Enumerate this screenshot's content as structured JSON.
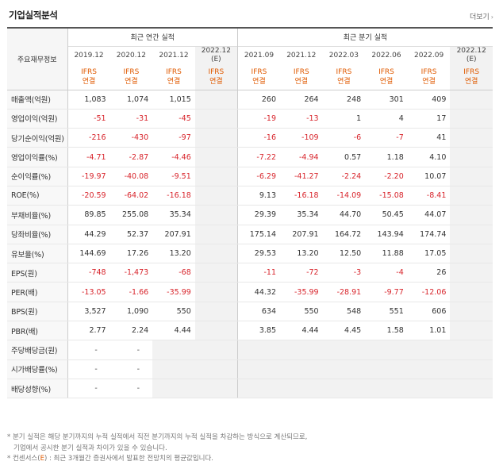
{
  "header": {
    "title": "기업실적분석",
    "more_label": "더보기",
    "more_arrow": "›"
  },
  "table": {
    "label_head": "주요재무정보",
    "annual_group": "최근 연간 실적",
    "quarterly_group": "최근 분기 실적",
    "annual_periods": [
      "2019.12",
      "2020.12",
      "2021.12",
      "2022.12"
    ],
    "annual_estimate_suffix": "(E)",
    "quarter_periods": [
      "2021.09",
      "2021.12",
      "2022.03",
      "2022.06",
      "2022.09",
      "2022.12"
    ],
    "quarter_estimate_suffix": "(E)",
    "ifrs_top": "IFRS",
    "ifrs_bottom": "연결",
    "rows": [
      {
        "label": "매출액(억원)",
        "values": [
          "1,083",
          "1,074",
          "1,015",
          "",
          "260",
          "264",
          "248",
          "301",
          "409",
          ""
        ]
      },
      {
        "label": "영업이익(억원)",
        "values": [
          "-51",
          "-31",
          "-45",
          "",
          "-19",
          "-13",
          "1",
          "4",
          "17",
          ""
        ]
      },
      {
        "label": "당기순이익(억원)",
        "values": [
          "-216",
          "-430",
          "-97",
          "",
          "-16",
          "-109",
          "-6",
          "-7",
          "41",
          ""
        ]
      },
      {
        "label": "영업이익률(%)",
        "values": [
          "-4.71",
          "-2.87",
          "-4.46",
          "",
          "-7.22",
          "-4.94",
          "0.57",
          "1.18",
          "4.10",
          ""
        ]
      },
      {
        "label": "순이익률(%)",
        "values": [
          "-19.97",
          "-40.08",
          "-9.51",
          "",
          "-6.29",
          "-41.27",
          "-2.24",
          "-2.20",
          "10.07",
          ""
        ]
      },
      {
        "label": "ROE(%)",
        "values": [
          "-20.59",
          "-64.02",
          "-16.18",
          "",
          "9.13",
          "-16.18",
          "-14.09",
          "-15.08",
          "-8.41",
          ""
        ]
      },
      {
        "label": "부채비율(%)",
        "values": [
          "89.85",
          "255.08",
          "35.34",
          "",
          "29.39",
          "35.34",
          "44.70",
          "50.45",
          "44.07",
          ""
        ]
      },
      {
        "label": "당좌비율(%)",
        "values": [
          "44.29",
          "52.37",
          "207.91",
          "",
          "175.14",
          "207.91",
          "164.72",
          "143.94",
          "174.74",
          ""
        ]
      },
      {
        "label": "유보율(%)",
        "values": [
          "144.69",
          "17.26",
          "13.20",
          "",
          "29.53",
          "13.20",
          "12.50",
          "11.88",
          "17.05",
          ""
        ]
      },
      {
        "label": "EPS(원)",
        "values": [
          "-748",
          "-1,473",
          "-68",
          "",
          "-11",
          "-72",
          "-3",
          "-4",
          "26",
          ""
        ]
      },
      {
        "label": "PER(배)",
        "values": [
          "-13.05",
          "-1.66",
          "-35.99",
          "",
          "44.32",
          "-35.99",
          "-28.91",
          "-9.77",
          "-12.06",
          ""
        ]
      },
      {
        "label": "BPS(원)",
        "values": [
          "3,527",
          "1,090",
          "550",
          "",
          "634",
          "550",
          "548",
          "551",
          "606",
          ""
        ]
      },
      {
        "label": "PBR(배)",
        "values": [
          "2.77",
          "2.24",
          "4.44",
          "",
          "3.85",
          "4.44",
          "4.45",
          "1.58",
          "1.01",
          ""
        ]
      },
      {
        "label": "주당배당금(원)",
        "values": [
          "-",
          "-",
          "",
          "",
          "",
          "",
          "",
          "",
          "",
          ""
        ]
      },
      {
        "label": "시가배당률(%)",
        "values": [
          "-",
          "-",
          "",
          "",
          "",
          "",
          "",
          "",
          "",
          ""
        ]
      },
      {
        "label": "배당성향(%)",
        "values": [
          "-",
          "-",
          "",
          "",
          "",
          "",
          "",
          "",
          "",
          ""
        ]
      }
    ]
  },
  "notes": {
    "line1": "* 분기 실적은 해당 분기까지의 누적 실적에서 직전 분기까지의 누적 실적을 차감하는 방식으로 계산되므로,",
    "line2": "기업에서 공시한 분기 실적과 차이가 있을 수 있습니다.",
    "line3_prefix": "* 컨센서스(",
    "line3_e": "E",
    "line3_suffix": ") : 최근 3개월간 증권사에서 발표한 전망치의 평균값입니다."
  },
  "colors": {
    "negative": "#d8242b",
    "ifrs": "#e05a00",
    "estimate_bg": "#f2f2f2"
  }
}
